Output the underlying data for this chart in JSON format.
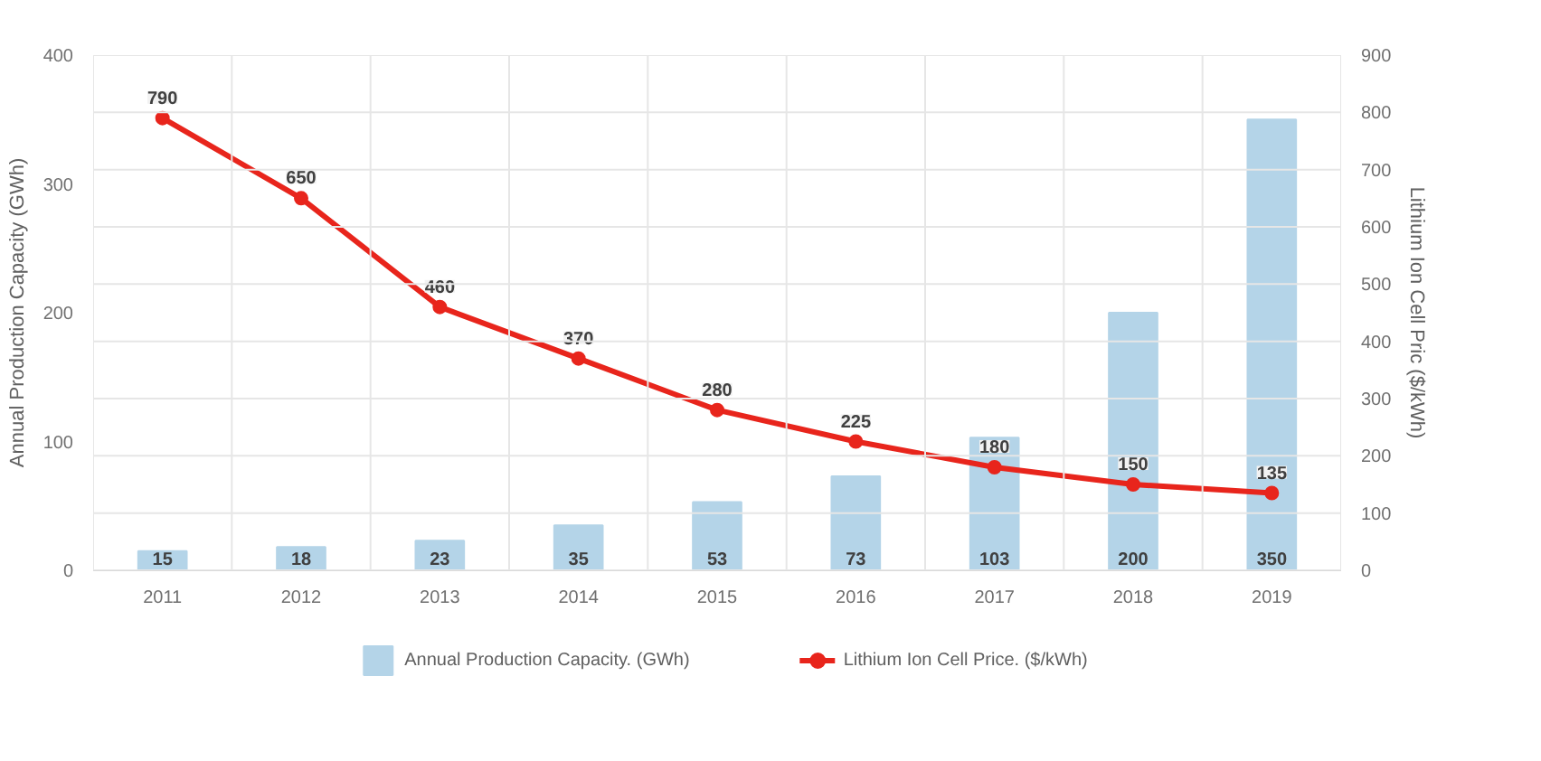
{
  "chart_data": {
    "type": "bar",
    "categories": [
      "2011",
      "2012",
      "2013",
      "2014",
      "2015",
      "2016",
      "2017",
      "2018",
      "2019"
    ],
    "ylabel": "Annual Production Capacity (GWh)",
    "y2label": "Lithium Ion Cell Pric ($/kWh)",
    "ylim": [
      0,
      400
    ],
    "yticks": [
      0,
      100,
      200,
      300,
      400
    ],
    "y2lim": [
      0,
      900
    ],
    "y2ticks": [
      0,
      100,
      200,
      300,
      400,
      500,
      600,
      700,
      800,
      900
    ],
    "series": [
      {
        "name": "Annual Production Capacity. (GWh)",
        "color": "#b4d4e8",
        "values": [
          15,
          18,
          23,
          35,
          53,
          73,
          103,
          200,
          350
        ]
      },
      {
        "name": "Lithium Ion Cell Price. ($/kWh)",
        "type": "line",
        "axis": "y2",
        "color": "#e8251c",
        "marker": "circle",
        "values": [
          790,
          650,
          460,
          370,
          280,
          225,
          180,
          150,
          135
        ]
      }
    ],
    "data_labels": true,
    "grid": true,
    "legend": "bottom"
  }
}
